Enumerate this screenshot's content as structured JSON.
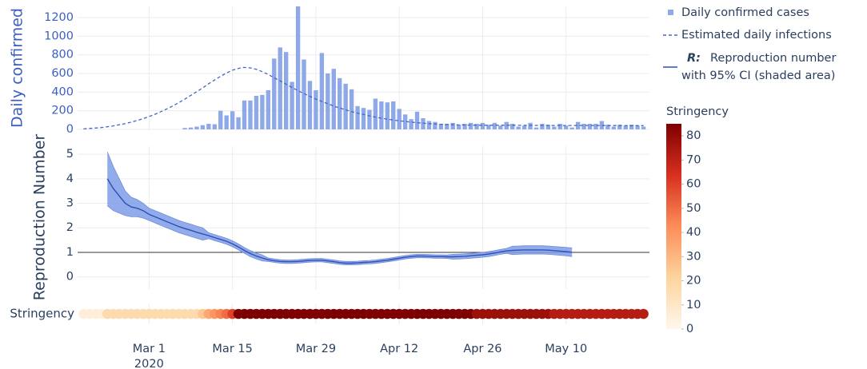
{
  "chart_data": {
    "type": "time_panels",
    "x": [
      "2020-02-19",
      "2020-02-20",
      "2020-02-21",
      "2020-02-22",
      "2020-02-23",
      "2020-02-24",
      "2020-02-25",
      "2020-02-26",
      "2020-02-27",
      "2020-02-28",
      "2020-02-29",
      "2020-03-01",
      "2020-03-02",
      "2020-03-03",
      "2020-03-04",
      "2020-03-05",
      "2020-03-06",
      "2020-03-07",
      "2020-03-08",
      "2020-03-09",
      "2020-03-10",
      "2020-03-11",
      "2020-03-12",
      "2020-03-13",
      "2020-03-14",
      "2020-03-15",
      "2020-03-16",
      "2020-03-17",
      "2020-03-18",
      "2020-03-19",
      "2020-03-20",
      "2020-03-21",
      "2020-03-22",
      "2020-03-23",
      "2020-03-24",
      "2020-03-25",
      "2020-03-26",
      "2020-03-27",
      "2020-03-28",
      "2020-03-29",
      "2020-03-30",
      "2020-03-31",
      "2020-04-01",
      "2020-04-02",
      "2020-04-03",
      "2020-04-04",
      "2020-04-05",
      "2020-04-06",
      "2020-04-07",
      "2020-04-08",
      "2020-04-09",
      "2020-04-10",
      "2020-04-11",
      "2020-04-12",
      "2020-04-13",
      "2020-04-14",
      "2020-04-15",
      "2020-04-16",
      "2020-04-17",
      "2020-04-18",
      "2020-04-19",
      "2020-04-20",
      "2020-04-21",
      "2020-04-22",
      "2020-04-23",
      "2020-04-24",
      "2020-04-25",
      "2020-04-26",
      "2020-04-27",
      "2020-04-28",
      "2020-04-29",
      "2020-04-30",
      "2020-05-01",
      "2020-05-02",
      "2020-05-03",
      "2020-05-04",
      "2020-05-05",
      "2020-05-06",
      "2020-05-07",
      "2020-05-08",
      "2020-05-09",
      "2020-05-10",
      "2020-05-11",
      "2020-05-12",
      "2020-05-13",
      "2020-05-14",
      "2020-05-15",
      "2020-05-16",
      "2020-05-17",
      "2020-05-18",
      "2020-05-19",
      "2020-05-20",
      "2020-05-21",
      "2020-05-22",
      "2020-05-23"
    ],
    "xlim": [
      "2020-02-18",
      "2020-05-24"
    ],
    "xticks": [
      {
        "value": "2020-03-01",
        "label": "Mar 1"
      },
      {
        "value": "2020-03-15",
        "label": "Mar 15"
      },
      {
        "value": "2020-03-29",
        "label": "Mar 29"
      },
      {
        "value": "2020-04-12",
        "label": "Apr 12"
      },
      {
        "value": "2020-04-26",
        "label": "Apr 26"
      },
      {
        "value": "2020-05-10",
        "label": "May 10"
      }
    ],
    "x_year_label": "2020",
    "grid": true,
    "panels": [
      {
        "ylabel": "Daily confirmed",
        "ylim": [
          0,
          1320
        ],
        "yticks": [
          0,
          200,
          400,
          600,
          800,
          1000,
          1200
        ]
      },
      {
        "ylabel": "Reproduction Number",
        "ylim": [
          -0.5,
          5.33
        ],
        "yticks": [
          0,
          1,
          2,
          3,
          4,
          5
        ],
        "hline": 1
      },
      {
        "ylabel": "Stringency"
      }
    ],
    "series": [
      {
        "name": "Daily confirmed cases",
        "type": "bar",
        "panel": 0,
        "color": "#8ea8e8",
        "values": [
          null,
          null,
          null,
          null,
          null,
          null,
          null,
          null,
          null,
          null,
          null,
          null,
          null,
          null,
          null,
          null,
          null,
          15,
          20,
          30,
          45,
          60,
          55,
          200,
          150,
          195,
          130,
          310,
          310,
          360,
          370,
          420,
          760,
          880,
          830,
          510,
          1320,
          750,
          520,
          420,
          820,
          600,
          650,
          550,
          490,
          430,
          250,
          230,
          210,
          330,
          300,
          290,
          300,
          220,
          160,
          110,
          190,
          120,
          90,
          80,
          60,
          60,
          70,
          50,
          60,
          70,
          60,
          70,
          50,
          70,
          40,
          80,
          60,
          30,
          40,
          70,
          20,
          60,
          50,
          30,
          60,
          40,
          20,
          80,
          60,
          60,
          60,
          90,
          50,
          30,
          50,
          40,
          50,
          40,
          30
        ]
      },
      {
        "name": "Estimated daily infections",
        "type": "line",
        "dash": true,
        "panel": 0,
        "color": "#4566c4",
        "values": [
          5,
          10,
          15,
          20,
          28,
          38,
          50,
          62,
          78,
          95,
          115,
          138,
          162,
          190,
          220,
          252,
          287,
          325,
          365,
          405,
          445,
          490,
          530,
          570,
          605,
          635,
          655,
          665,
          660,
          645,
          620,
          590,
          555,
          520,
          485,
          450,
          415,
          385,
          355,
          325,
          300,
          275,
          250,
          230,
          210,
          190,
          175,
          160,
          145,
          132,
          120,
          110,
          100,
          92,
          85,
          78,
          72,
          67,
          62,
          58,
          55,
          52,
          50,
          48,
          47,
          46,
          45,
          45,
          45,
          45,
          45,
          45,
          45,
          44,
          44,
          44,
          43,
          43,
          43,
          42,
          42,
          42,
          42,
          42,
          42,
          42,
          42,
          41,
          41,
          41,
          41,
          40,
          40,
          40,
          40
        ]
      },
      {
        "symbol": "R:",
        "name": [
          "Reproduction number",
          "with 95% CI (shaded area)"
        ],
        "type": "band_line",
        "panel": 1,
        "color": "#2f4fb5",
        "band_color": "#7f9ce6",
        "values": [
          null,
          null,
          null,
          null,
          4.0,
          3.6,
          3.3,
          3.0,
          2.85,
          2.8,
          2.7,
          2.55,
          2.45,
          2.35,
          2.25,
          2.15,
          2.05,
          1.97,
          1.9,
          1.82,
          1.75,
          1.68,
          1.6,
          1.53,
          1.45,
          1.35,
          1.22,
          1.08,
          0.95,
          0.85,
          0.77,
          0.7,
          0.66,
          0.63,
          0.62,
          0.62,
          0.63,
          0.65,
          0.67,
          0.68,
          0.68,
          0.65,
          0.62,
          0.58,
          0.56,
          0.56,
          0.57,
          0.59,
          0.6,
          0.62,
          0.65,
          0.68,
          0.72,
          0.76,
          0.8,
          0.83,
          0.85,
          0.85,
          0.84,
          0.83,
          0.83,
          0.82,
          0.82,
          0.83,
          0.84,
          0.86,
          0.88,
          0.9,
          0.93,
          0.97,
          1.02,
          1.06,
          1.08,
          1.09,
          1.1,
          1.1,
          1.1,
          1.1,
          1.09,
          1.07,
          1.05,
          1.03,
          1.0,
          null,
          null,
          null,
          null,
          null,
          null,
          null,
          null,
          null,
          null,
          null,
          null
        ],
        "lower": [
          null,
          null,
          null,
          null,
          2.9,
          2.7,
          2.6,
          2.5,
          2.45,
          2.45,
          2.4,
          2.3,
          2.2,
          2.1,
          2.0,
          1.9,
          1.8,
          1.72,
          1.65,
          1.57,
          1.5,
          1.56,
          1.48,
          1.41,
          1.33,
          1.23,
          1.1,
          0.96,
          0.83,
          0.73,
          0.65,
          0.63,
          0.59,
          0.56,
          0.55,
          0.55,
          0.56,
          0.58,
          0.6,
          0.61,
          0.61,
          0.58,
          0.55,
          0.51,
          0.49,
          0.49,
          0.5,
          0.52,
          0.53,
          0.55,
          0.58,
          0.61,
          0.65,
          0.69,
          0.73,
          0.76,
          0.78,
          0.78,
          0.77,
          0.76,
          0.76,
          0.75,
          0.72,
          0.73,
          0.74,
          0.76,
          0.78,
          0.8,
          0.83,
          0.87,
          0.92,
          0.96,
          0.91,
          0.92,
          0.93,
          0.93,
          0.93,
          0.93,
          0.92,
          0.9,
          0.88,
          0.86,
          0.83,
          null,
          null,
          null,
          null,
          null,
          null,
          null,
          null,
          null,
          null,
          null,
          null
        ],
        "upper": [
          null,
          null,
          null,
          null,
          5.1,
          4.5,
          4.0,
          3.5,
          3.25,
          3.15,
          3.0,
          2.8,
          2.7,
          2.6,
          2.5,
          2.4,
          2.3,
          2.22,
          2.15,
          2.07,
          2.0,
          1.8,
          1.72,
          1.65,
          1.57,
          1.47,
          1.34,
          1.2,
          1.07,
          0.97,
          0.89,
          0.77,
          0.73,
          0.7,
          0.69,
          0.69,
          0.7,
          0.72,
          0.74,
          0.75,
          0.75,
          0.72,
          0.69,
          0.65,
          0.63,
          0.63,
          0.64,
          0.66,
          0.67,
          0.69,
          0.72,
          0.75,
          0.79,
          0.83,
          0.87,
          0.9,
          0.92,
          0.92,
          0.91,
          0.9,
          0.9,
          0.89,
          0.92,
          0.93,
          0.94,
          0.96,
          0.98,
          1.0,
          1.03,
          1.07,
          1.12,
          1.16,
          1.25,
          1.26,
          1.27,
          1.27,
          1.27,
          1.27,
          1.26,
          1.24,
          1.22,
          1.2,
          1.18,
          null,
          null,
          null,
          null,
          null,
          null,
          null,
          null,
          null,
          null,
          null,
          null
        ]
      },
      {
        "type": "dots",
        "panel": 2,
        "values": [
          5,
          5,
          5,
          5,
          17,
          17,
          17,
          17,
          17,
          17,
          17,
          17,
          17,
          17,
          17,
          17,
          17,
          17,
          17,
          17,
          25,
          35,
          40,
          45,
          50,
          60,
          85,
          85,
          85,
          85,
          85,
          85,
          85,
          85,
          85,
          85,
          85,
          85,
          85,
          85,
          85,
          85,
          85,
          85,
          85,
          85,
          85,
          85,
          85,
          85,
          85,
          85,
          85,
          85,
          85,
          85,
          85,
          85,
          85,
          85,
          85,
          85,
          85,
          85,
          85,
          85,
          78,
          78,
          78,
          78,
          78,
          78,
          78,
          78,
          78,
          78,
          78,
          78,
          78,
          72,
          72,
          72,
          72,
          72,
          72,
          72,
          72,
          72,
          72,
          72,
          72,
          72,
          72,
          72,
          72
        ]
      }
    ],
    "colorbar": {
      "title": "Stringency",
      "range": [
        0,
        85
      ],
      "ticks": [
        0,
        10,
        20,
        30,
        40,
        50,
        60,
        70,
        80
      ],
      "colorscale": [
        [
          0,
          "#fff7ec"
        ],
        [
          0.25,
          "#fdd49e"
        ],
        [
          0.5,
          "#fc8d59"
        ],
        [
          0.75,
          "#d7301f"
        ],
        [
          1,
          "#7f0000"
        ]
      ]
    }
  }
}
